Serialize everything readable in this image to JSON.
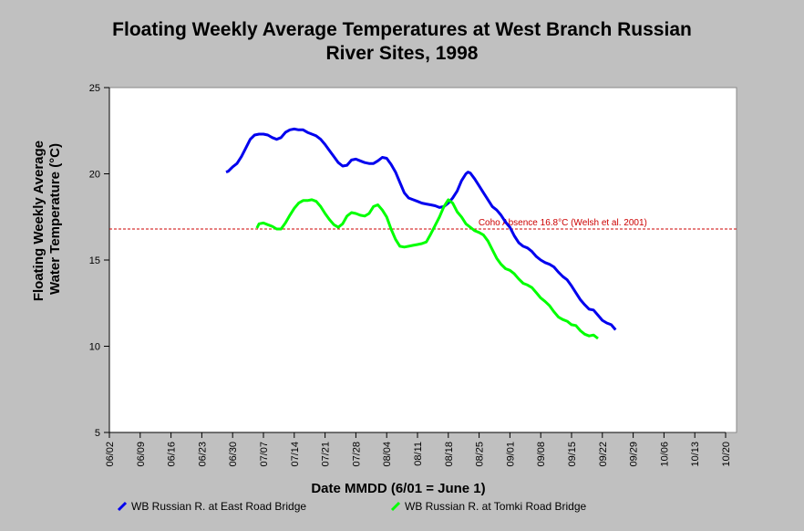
{
  "chart_data": {
    "type": "line",
    "title_line1": "Floating Weekly Average Temperatures at West Branch Russian",
    "title_line2": "River Sites, 1998",
    "xlabel": "Date MMDD (6/01 = June 1)",
    "ylabel_line1": "Floating Weekly Average",
    "ylabel_line2": "Water Temperature (°C)",
    "ylim": [
      5,
      25
    ],
    "yticks": [
      5,
      10,
      15,
      20,
      25
    ],
    "xlim_days": [
      1,
      141
    ],
    "xtick_labels": [
      "06/02",
      "06/09",
      "06/16",
      "06/23",
      "06/30",
      "07/07",
      "07/14",
      "07/21",
      "07/28",
      "08/04",
      "08/11",
      "08/18",
      "08/25",
      "09/01",
      "09/08",
      "09/15",
      "09/22",
      "09/29",
      "10/06",
      "10/13",
      "10/20"
    ],
    "xtick_days": [
      1,
      8,
      15,
      22,
      29,
      36,
      43,
      50,
      57,
      64,
      71,
      78,
      85,
      92,
      99,
      106,
      113,
      120,
      127,
      134,
      141
    ],
    "grid": false,
    "background_color": "#ffffff",
    "reference_line": {
      "value": 16.8,
      "label": "Coho Absence 16.8°C (Welsh et al. 2001)",
      "color": "#cc0000"
    },
    "series": [
      {
        "name": "WB Russian R. at East Road Bridge",
        "color": "#0000ee",
        "points": [
          [
            27.5,
            20.1
          ],
          [
            28,
            20.15
          ],
          [
            29,
            20.4
          ],
          [
            30,
            20.6
          ],
          [
            31,
            21.0
          ],
          [
            32,
            21.5
          ],
          [
            33,
            22.0
          ],
          [
            34,
            22.25
          ],
          [
            35,
            22.3
          ],
          [
            36,
            22.3
          ],
          [
            37,
            22.25
          ],
          [
            38,
            22.1
          ],
          [
            39,
            22.0
          ],
          [
            40,
            22.1
          ],
          [
            41,
            22.4
          ],
          [
            42,
            22.55
          ],
          [
            43,
            22.6
          ],
          [
            44,
            22.55
          ],
          [
            45,
            22.55
          ],
          [
            46,
            22.4
          ],
          [
            47,
            22.3
          ],
          [
            48,
            22.2
          ],
          [
            49,
            22.0
          ],
          [
            50,
            21.7
          ],
          [
            51,
            21.35
          ],
          [
            52,
            21.0
          ],
          [
            53,
            20.65
          ],
          [
            54,
            20.45
          ],
          [
            55,
            20.5
          ],
          [
            56,
            20.8
          ],
          [
            57,
            20.85
          ],
          [
            58,
            20.75
          ],
          [
            59,
            20.65
          ],
          [
            60,
            20.6
          ],
          [
            61,
            20.6
          ],
          [
            62,
            20.75
          ],
          [
            63,
            20.95
          ],
          [
            64,
            20.9
          ],
          [
            65,
            20.55
          ],
          [
            66,
            20.1
          ],
          [
            67,
            19.5
          ],
          [
            68,
            18.9
          ],
          [
            69,
            18.6
          ],
          [
            70,
            18.5
          ],
          [
            71,
            18.4
          ],
          [
            72,
            18.3
          ],
          [
            73,
            18.25
          ],
          [
            74,
            18.2
          ],
          [
            75,
            18.15
          ],
          [
            76,
            18.05
          ],
          [
            77,
            18.1
          ],
          [
            78,
            18.3
          ],
          [
            79,
            18.6
          ],
          [
            80,
            19.0
          ],
          [
            81,
            19.6
          ],
          [
            82,
            20.0
          ],
          [
            82.5,
            20.1
          ],
          [
            83,
            20.05
          ],
          [
            84,
            19.7
          ],
          [
            85,
            19.3
          ],
          [
            86,
            18.9
          ],
          [
            87,
            18.5
          ],
          [
            88,
            18.1
          ],
          [
            89,
            17.9
          ],
          [
            90,
            17.6
          ],
          [
            91,
            17.2
          ],
          [
            92,
            16.9
          ],
          [
            93,
            16.4
          ],
          [
            94,
            16.0
          ],
          [
            95,
            15.8
          ],
          [
            96,
            15.7
          ],
          [
            97,
            15.5
          ],
          [
            98,
            15.2
          ],
          [
            99,
            15.0
          ],
          [
            100,
            14.85
          ],
          [
            101,
            14.75
          ],
          [
            102,
            14.6
          ],
          [
            103,
            14.3
          ],
          [
            104,
            14.05
          ],
          [
            105,
            13.85
          ],
          [
            106,
            13.5
          ],
          [
            107,
            13.1
          ],
          [
            108,
            12.7
          ],
          [
            109,
            12.4
          ],
          [
            110,
            12.15
          ],
          [
            111,
            12.1
          ],
          [
            112,
            11.8
          ],
          [
            113,
            11.5
          ],
          [
            114,
            11.35
          ],
          [
            115,
            11.25
          ],
          [
            116,
            10.95
          ]
        ]
      },
      {
        "name": "WB Russian R. at Tomki Road Bridge",
        "color": "#00ff00",
        "points": [
          [
            34.5,
            16.85
          ],
          [
            35,
            17.1
          ],
          [
            36,
            17.15
          ],
          [
            37,
            17.05
          ],
          [
            38,
            16.95
          ],
          [
            39,
            16.8
          ],
          [
            40,
            16.8
          ],
          [
            41,
            17.15
          ],
          [
            42,
            17.6
          ],
          [
            43,
            18.0
          ],
          [
            44,
            18.3
          ],
          [
            45,
            18.45
          ],
          [
            46,
            18.45
          ],
          [
            47,
            18.5
          ],
          [
            48,
            18.4
          ],
          [
            49,
            18.1
          ],
          [
            50,
            17.7
          ],
          [
            51,
            17.35
          ],
          [
            52,
            17.05
          ],
          [
            53,
            16.9
          ],
          [
            54,
            17.1
          ],
          [
            55,
            17.55
          ],
          [
            56,
            17.75
          ],
          [
            57,
            17.7
          ],
          [
            58,
            17.6
          ],
          [
            59,
            17.55
          ],
          [
            60,
            17.7
          ],
          [
            61,
            18.1
          ],
          [
            62,
            18.2
          ],
          [
            63,
            17.9
          ],
          [
            64,
            17.5
          ],
          [
            65,
            16.8
          ],
          [
            66,
            16.2
          ],
          [
            67,
            15.8
          ],
          [
            68,
            15.75
          ],
          [
            69,
            15.8
          ],
          [
            70,
            15.85
          ],
          [
            71,
            15.9
          ],
          [
            72,
            15.95
          ],
          [
            73,
            16.05
          ],
          [
            74,
            16.5
          ],
          [
            75,
            17.0
          ],
          [
            76,
            17.5
          ],
          [
            77,
            18.1
          ],
          [
            78,
            18.5
          ],
          [
            79,
            18.3
          ],
          [
            80,
            17.8
          ],
          [
            81,
            17.5
          ],
          [
            82,
            17.1
          ],
          [
            83,
            16.9
          ],
          [
            84,
            16.7
          ],
          [
            85,
            16.6
          ],
          [
            86,
            16.45
          ],
          [
            87,
            16.1
          ],
          [
            88,
            15.6
          ],
          [
            89,
            15.1
          ],
          [
            90,
            14.75
          ],
          [
            91,
            14.5
          ],
          [
            92,
            14.4
          ],
          [
            93,
            14.2
          ],
          [
            94,
            13.9
          ],
          [
            95,
            13.65
          ],
          [
            96,
            13.55
          ],
          [
            97,
            13.4
          ],
          [
            98,
            13.1
          ],
          [
            99,
            12.8
          ],
          [
            100,
            12.6
          ],
          [
            101,
            12.35
          ],
          [
            102,
            12.0
          ],
          [
            103,
            11.7
          ],
          [
            104,
            11.55
          ],
          [
            105,
            11.45
          ],
          [
            106,
            11.25
          ],
          [
            107,
            11.2
          ],
          [
            108,
            10.9
          ],
          [
            109,
            10.7
          ],
          [
            110,
            10.6
          ],
          [
            111,
            10.65
          ],
          [
            112,
            10.45
          ]
        ]
      }
    ]
  }
}
